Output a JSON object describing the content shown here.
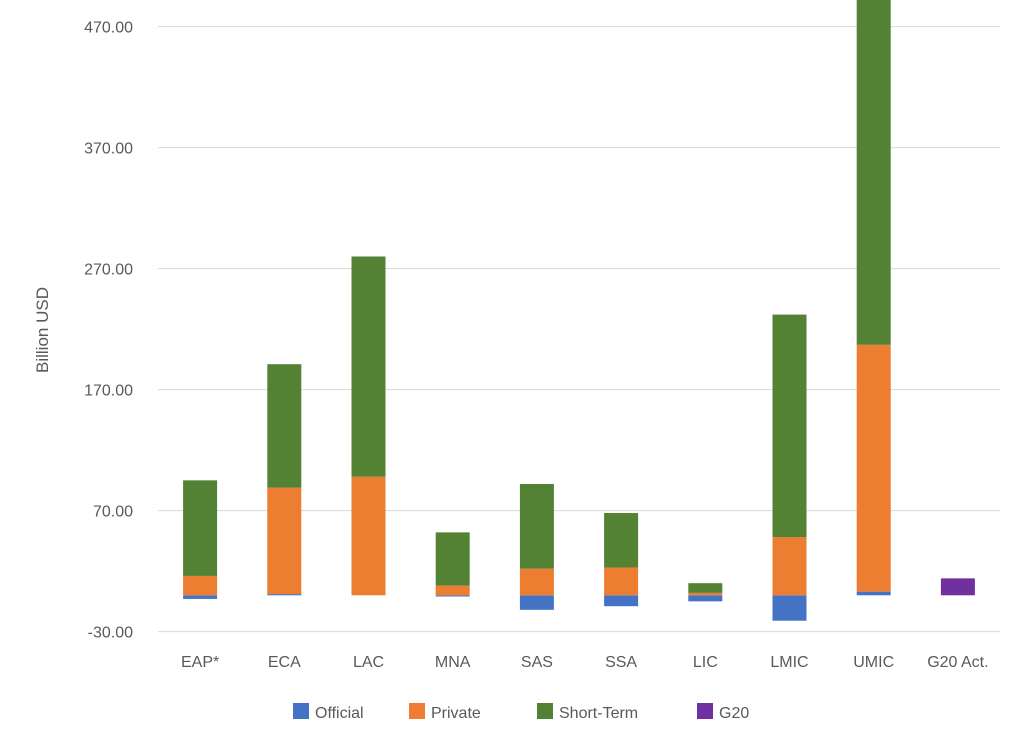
{
  "chart_data": {
    "type": "bar",
    "stacked": true,
    "title": "",
    "xlabel": "",
    "ylabel": "Billion USD",
    "ylim": [
      -30,
      490
    ],
    "yticks": [
      "470.00",
      "370.00",
      "270.00",
      "170.00",
      "70.00",
      "-30.00"
    ],
    "ytick_values": [
      470,
      370,
      270,
      170,
      70,
      -30
    ],
    "grid": true,
    "legend_position": "bottom",
    "categories": [
      "EAP*",
      "ECA",
      "LAC",
      "MNA",
      "SAS",
      "SSA",
      "LIC",
      "LMIC",
      "UMIC",
      "G20 Act."
    ],
    "series": [
      {
        "name": "Official",
        "color": "#4472c4",
        "values": [
          -3,
          1,
          0,
          -1,
          -12,
          -9,
          -5,
          -21,
          3,
          0
        ]
      },
      {
        "name": "Private",
        "color": "#ed7d31",
        "values": [
          16,
          88,
          98,
          8,
          22,
          23,
          2,
          48,
          204,
          0
        ]
      },
      {
        "name": "Short-Term",
        "color": "#548235",
        "values": [
          79,
          102,
          182,
          44,
          70,
          45,
          8,
          184,
          285,
          0
        ]
      },
      {
        "name": "G20",
        "color": "#7030a0",
        "values": [
          0,
          0,
          0,
          0,
          0,
          0,
          0,
          0,
          0,
          14
        ]
      }
    ]
  }
}
